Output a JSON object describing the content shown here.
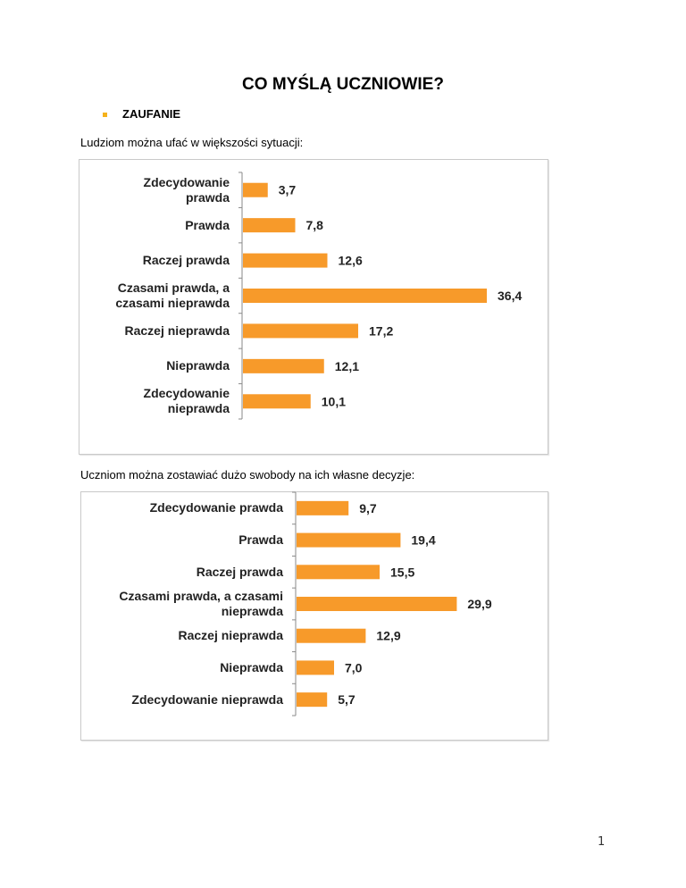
{
  "page": {
    "title": "CO MYŚLĄ UCZNIOWIE?",
    "section": "ZAUFANIE",
    "page_number": "1",
    "accent": "#f5b21c"
  },
  "questions": [
    "Ludziom można ufać w większości sytuacji:",
    "Uczniom można zostawiać dużo swobody na ich własne decyzje:"
  ],
  "chart_data": [
    {
      "type": "bar",
      "orientation": "horizontal",
      "title": "Ludziom można ufać w większości sytuacji:",
      "categories": [
        "Zdecydowanie prawda",
        "Prawda",
        "Raczej prawda",
        "Czasami prawda, a czasami nieprawda",
        "Raczej nieprawda",
        "Nieprawda",
        "Zdecydowanie nieprawda"
      ],
      "category_lines": [
        [
          "Zdecydowanie",
          "prawda"
        ],
        [
          "Prawda"
        ],
        [
          "Raczej prawda"
        ],
        [
          "Czasami prawda, a",
          "czasami nieprawda"
        ],
        [
          "Raczej nieprawda"
        ],
        [
          "Nieprawda"
        ],
        [
          "Zdecydowanie",
          "nieprawda"
        ]
      ],
      "values": [
        3.7,
        7.8,
        12.6,
        36.4,
        17.2,
        12.1,
        10.1
      ],
      "labels": [
        "3,7",
        "7,8",
        "12,6",
        "36,4",
        "17,2",
        "12,1",
        "10,1"
      ],
      "bar_color": "#f79a2a",
      "xlim": [
        0,
        40
      ],
      "grid": false,
      "legend": "none"
    },
    {
      "type": "bar",
      "orientation": "horizontal",
      "title": "Uczniom można zostawiać dużo swobody na ich własne decyzje:",
      "categories": [
        "Zdecydowanie prawda",
        "Prawda",
        "Raczej prawda",
        "Czasami prawda, a czasami nieprawda",
        "Raczej nieprawda",
        "Nieprawda",
        "Zdecydowanie nieprawda"
      ],
      "category_lines": [
        [
          "Zdecydowanie prawda"
        ],
        [
          "Prawda"
        ],
        [
          "Raczej prawda"
        ],
        [
          "Czasami prawda, a czasami",
          "nieprawda"
        ],
        [
          "Raczej nieprawda"
        ],
        [
          "Nieprawda"
        ],
        [
          "Zdecydowanie nieprawda"
        ]
      ],
      "values": [
        9.7,
        19.4,
        15.5,
        29.9,
        12.9,
        7.0,
        5.7
      ],
      "labels": [
        "9,7",
        "19,4",
        "15,5",
        "29,9",
        "12,9",
        "7,0",
        "5,7"
      ],
      "bar_color": "#f79a2a",
      "xlim": [
        0,
        45
      ],
      "grid": false,
      "legend": "none"
    }
  ]
}
